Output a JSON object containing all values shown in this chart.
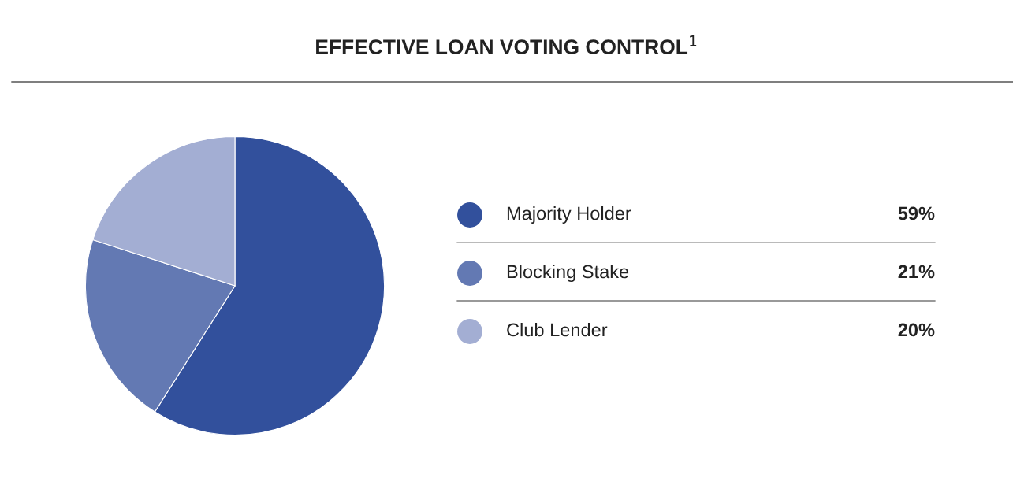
{
  "chart_data": {
    "type": "pie",
    "title": "EFFECTIVE LOAN VOTING CONTROL$^{1}$",
    "categories": [
      "Majority Holder",
      "Blocking Stake",
      "Club Lender"
    ],
    "values": [
      59,
      21,
      20
    ],
    "colors": [
      "#32509c",
      "#6379b3",
      "#a3aed3"
    ],
    "value_labels": [
      "59%",
      "21%",
      "20%"
    ],
    "legend": "right"
  }
}
